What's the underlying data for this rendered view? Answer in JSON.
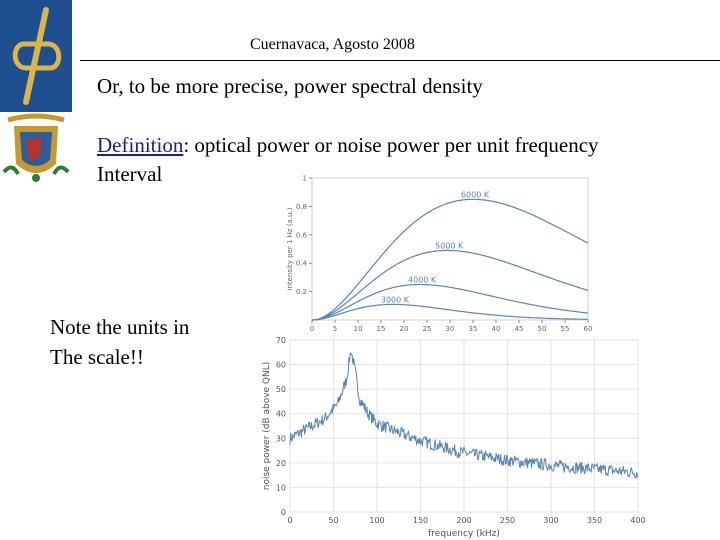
{
  "header": {
    "title": "Cuernavaca,  Agosto 2008"
  },
  "slide": {
    "line1": "Or, to be more precise, power spectral density",
    "definition_word": "Definition",
    "definition_rest": ": optical power or noise power per unit frequency",
    "definition_line2": "Interval",
    "note_line1": "Note the units in",
    "note_line2": "The scale!!"
  },
  "chart_data": [
    {
      "type": "line",
      "xlabel": "",
      "ylabel": "intensity per 1 Hz (a.u.)",
      "x_ticks": [
        "0",
        "5",
        "10",
        "15",
        "20",
        "25",
        "30",
        "35",
        "40",
        "45",
        "50",
        "55",
        "60"
      ],
      "y_ticks": [
        "0.2",
        "0.4",
        "0.6",
        "0.8",
        "1"
      ],
      "xlim": [
        0,
        60
      ],
      "ylim": [
        0,
        1
      ],
      "series": [
        {
          "name": "6000 K",
          "temperature": 6000,
          "peak_x": 35,
          "peak_y": 0.85
        },
        {
          "name": "5000 K",
          "temperature": 5000,
          "peak_x": 29.4,
          "peak_y": 0.49
        },
        {
          "name": "4000 K",
          "temperature": 4000,
          "peak_x": 23.5,
          "peak_y": 0.25
        },
        {
          "name": "3000 K",
          "temperature": 3000,
          "peak_x": 17.6,
          "peak_y": 0.11
        }
      ],
      "color": "#5b84b1"
    },
    {
      "type": "line",
      "xlabel": "frequency (kHz)",
      "ylabel": "noise power (dB above QNL)",
      "x_ticks": [
        "0",
        "50",
        "100",
        "150",
        "200",
        "250",
        "300",
        "350",
        "400"
      ],
      "y_ticks": [
        "0",
        "10",
        "20",
        "30",
        "40",
        "50",
        "60",
        "70"
      ],
      "xlim": [
        0,
        400
      ],
      "ylim": [
        0,
        70
      ],
      "series": [
        {
          "name": "",
          "x": [
            0,
            20,
            40,
            55,
            65,
            70,
            75,
            80,
            90,
            100,
            120,
            150,
            200,
            250,
            300,
            350,
            400
          ],
          "y": [
            30,
            34,
            38,
            44,
            54,
            66,
            57,
            46,
            40,
            36,
            33,
            29,
            24,
            21,
            19,
            17.5,
            16
          ]
        }
      ],
      "noise_amplitude": 2.5,
      "color": "#5b84b1"
    }
  ]
}
